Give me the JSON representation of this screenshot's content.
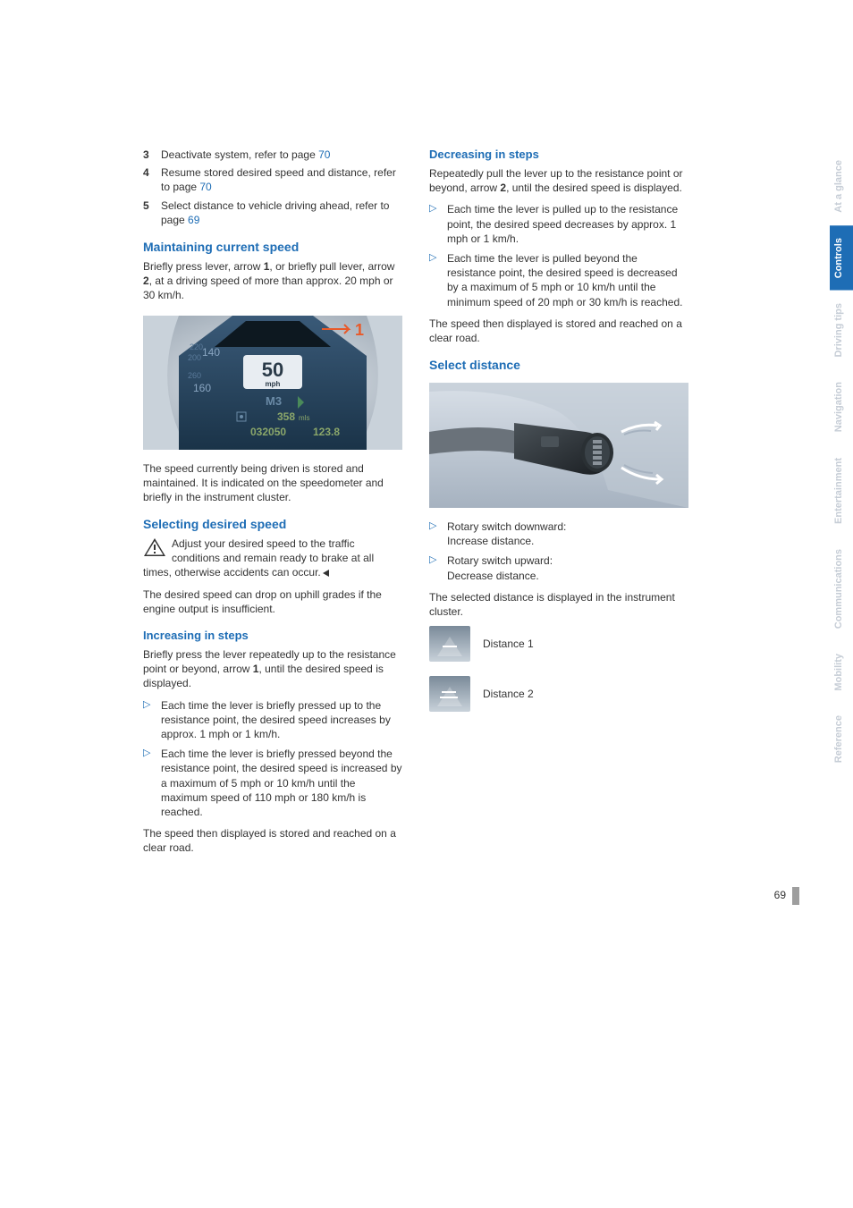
{
  "sideTabs": [
    {
      "label": "At a glance",
      "bg": "#ffffff",
      "fg": "#c6cdd6"
    },
    {
      "label": "Controls",
      "bg": "#1e6db5",
      "fg": "#ffffff"
    },
    {
      "label": "Driving tips",
      "bg": "#ffffff",
      "fg": "#c6cdd6"
    },
    {
      "label": "Navigation",
      "bg": "#ffffff",
      "fg": "#c6cdd6"
    },
    {
      "label": "Entertainment",
      "bg": "#ffffff",
      "fg": "#c6cdd6"
    },
    {
      "label": "Communications",
      "bg": "#ffffff",
      "fg": "#c6cdd6"
    },
    {
      "label": "Mobility",
      "bg": "#ffffff",
      "fg": "#c6cdd6"
    },
    {
      "label": "Reference",
      "bg": "#ffffff",
      "fg": "#c6cdd6"
    }
  ],
  "left": {
    "numlist": [
      {
        "n": "3",
        "text": "Deactivate system, refer to page ",
        "page": "70"
      },
      {
        "n": "4",
        "text": "Resume stored desired speed and distance, refer to page ",
        "page": "70"
      },
      {
        "n": "5",
        "text": "Select distance to vehicle driving ahead, refer to page ",
        "page": "69"
      }
    ],
    "maintaining": {
      "title": "Maintaining current speed",
      "p1_a": "Briefly press lever, arrow ",
      "p1_b1": "1",
      "p1_c": ", or briefly pull lever, arrow ",
      "p1_b2": "2",
      "p1_d": ", at a driving speed of more than approx. 20 mph or 30 km/h.",
      "cluster": {
        "speed": "50",
        "unit": "mph",
        "model": "M3",
        "miles": "358",
        "milesUnit": "mls",
        "odo": "032050",
        "trip": "123.8",
        "arrow": "1"
      },
      "p2": "The speed currently being driven is stored and maintained. It is indicated on the speedometer and briefly in the instrument cluster."
    },
    "selecting": {
      "title": "Selecting desired speed",
      "warn": "Adjust your desired speed to the traffic conditions and remain ready to brake at all times, otherwise accidents can occur.",
      "p1": "The desired speed can drop on uphill grades if the engine output is insufficient."
    },
    "increasing": {
      "title": "Increasing in steps",
      "p1_a": "Briefly press the lever repeatedly up to the resistance point or beyond, arrow ",
      "p1_b": "1",
      "p1_c": ", until the desired speed is displayed.",
      "bul": [
        "Each time the lever is briefly pressed up to the resistance point, the desired speed increases by approx. 1 mph or 1 km/h.",
        "Each time the lever is briefly pressed beyond the resistance point, the desired speed is increased by a maximum of 5 mph or 10 km/h until the maximum speed of 110 mph or 180 km/h is reached."
      ],
      "p2": "The speed then displayed is stored and reached on a clear road."
    }
  },
  "right": {
    "decreasing": {
      "title": "Decreasing in steps",
      "p1_a": "Repeatedly pull the lever up to the resistance point or beyond, arrow ",
      "p1_b": "2",
      "p1_c": ", until the desired speed is displayed.",
      "bul": [
        "Each time the lever is pulled up to the resistance point, the desired speed decreases by approx. 1 mph or 1 km/h.",
        "Each time the lever is pulled beyond the resistance point, the desired speed is decreased by a maximum of 5 mph or 10 km/h until the minimum speed of 20 mph or 30 km/h is reached."
      ],
      "p2": "The speed then displayed is stored and reached on a clear road."
    },
    "select": {
      "title": "Select distance",
      "bul": [
        "Rotary switch downward:\nIncrease distance.",
        "Rotary switch upward:\nDecrease distance."
      ],
      "p1": "The selected distance is displayed in the instrument cluster.",
      "dist1": "Distance 1",
      "dist2": "Distance 2"
    }
  },
  "pageNum": "69"
}
